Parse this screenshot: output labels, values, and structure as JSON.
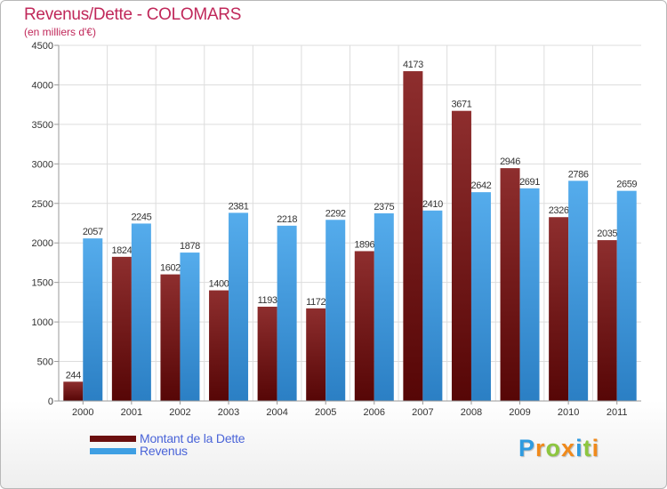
{
  "title": "Revenus/Dette - COLOMARS",
  "subtitle": "(en milliers d'€)",
  "chart_data": {
    "type": "bar",
    "title": "Revenus/Dette - COLOMARS",
    "subtitle": "(en milliers d'€)",
    "xlabel": "",
    "ylabel": "",
    "ylim": [
      0,
      4500
    ],
    "yticks": [
      0,
      500,
      1000,
      1500,
      2000,
      2500,
      3000,
      3500,
      4000,
      4500
    ],
    "grid": true,
    "categories": [
      "2000",
      "2001",
      "2002",
      "2003",
      "2004",
      "2005",
      "2006",
      "2007",
      "2008",
      "2009",
      "2010",
      "2011"
    ],
    "series": [
      {
        "name": "Montant de la Dette",
        "color": "#7a1818",
        "values": [
          244,
          1824,
          1602,
          1400,
          1193,
          1172,
          1896,
          4173,
          3671,
          2946,
          2326,
          2035
        ]
      },
      {
        "name": "Revenus",
        "color": "#3f9fe3",
        "values": [
          2057,
          2245,
          1878,
          2381,
          2218,
          2292,
          2375,
          2410,
          2642,
          2691,
          2786,
          2659
        ]
      }
    ],
    "legend_position": "bottom-left"
  },
  "legend": {
    "items": [
      {
        "label": "Montant de la Dette",
        "color": "#6b0f0f"
      },
      {
        "label": "Revenus",
        "color": "#3f9fe3"
      }
    ]
  },
  "logo": {
    "letters": [
      "P",
      "r",
      "o",
      "x",
      "i",
      "t",
      "i"
    ],
    "colors": [
      "#2f9be0",
      "#f08a1c",
      "#8dc63f",
      "#f08a1c",
      "#2f9be0",
      "#8dc63f",
      "#f08a1c"
    ]
  }
}
